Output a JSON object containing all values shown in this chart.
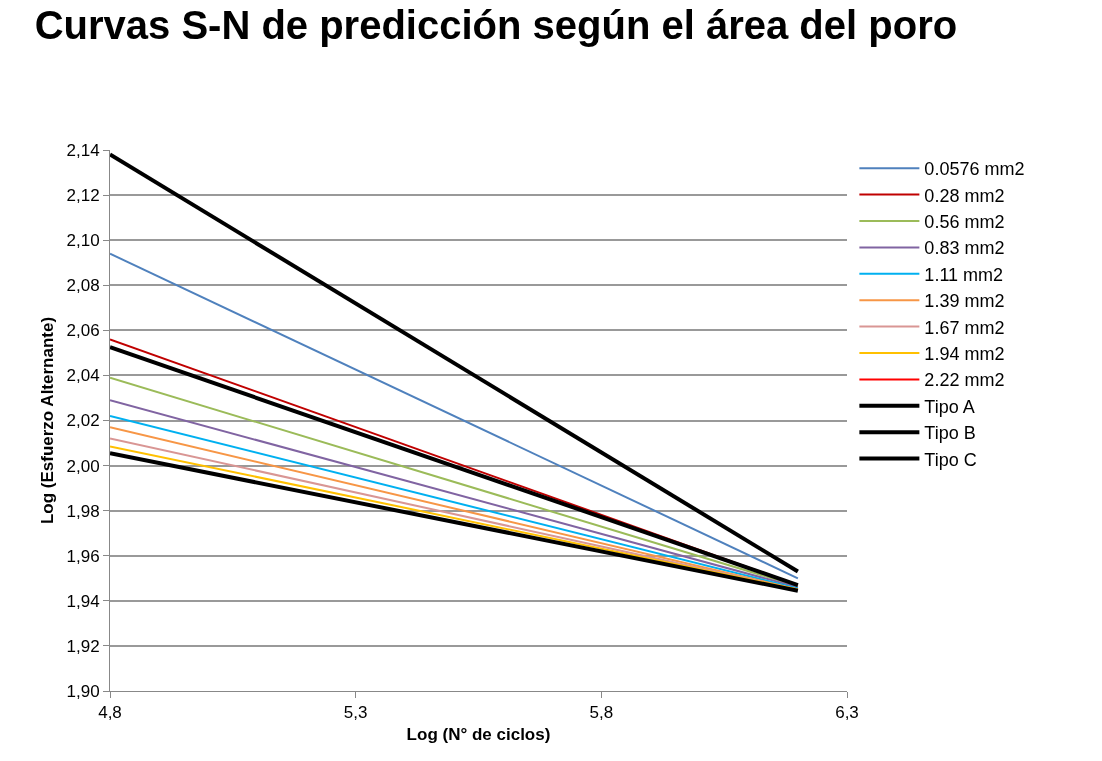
{
  "chart_data": {
    "type": "line",
    "title": "Curvas S-N de predicción según el área del poro",
    "xlabel": "Log (N° de ciclos)",
    "ylabel": "Log (Esfuerzo Alternante)",
    "x": [
      4.8,
      6.2
    ],
    "series": [
      {
        "name": "0.0576 mm2",
        "color": "#4f81bd",
        "values": [
          2.094,
          1.95
        ]
      },
      {
        "name": "0.28 mm2",
        "color": "#c00000",
        "values": [
          2.056,
          1.947
        ]
      },
      {
        "name": "0.56 mm2",
        "color": "#9bbb59",
        "values": [
          2.039,
          1.9465
        ]
      },
      {
        "name": "0.83 mm2",
        "color": "#8064a2",
        "values": [
          2.029,
          1.946
        ]
      },
      {
        "name": "1.11 mm2",
        "color": "#00b0f0",
        "values": [
          2.022,
          1.9455
        ]
      },
      {
        "name": "1.39 mm2",
        "color": "#f79646",
        "values": [
          2.017,
          1.945
        ]
      },
      {
        "name": "1.67 mm2",
        "color": "#d99694",
        "values": [
          2.012,
          1.945
        ]
      },
      {
        "name": "1.94 mm2",
        "color": "#ffc000",
        "values": [
          2.0085,
          1.945
        ]
      },
      {
        "name": "2.22 mm2",
        "color": "#ff0000",
        "values": [
          null,
          null
        ]
      },
      {
        "name": "Tipo A",
        "color": "#000000",
        "values": [
          2.138,
          1.953
        ]
      },
      {
        "name": "Tipo B",
        "color": "#000000",
        "values": [
          2.0525,
          1.947
        ]
      },
      {
        "name": "Tipo C",
        "color": "#000000",
        "values": [
          2.0055,
          1.9445
        ]
      }
    ],
    "xlim": [
      4.8,
      6.3
    ],
    "xticks": [
      {
        "value": 4.8,
        "label": "4,8"
      },
      {
        "value": 5.3,
        "label": "5,3"
      },
      {
        "value": 5.8,
        "label": "5,8"
      },
      {
        "value": 6.3,
        "label": "6,3"
      }
    ],
    "ylim": [
      1.9,
      2.14
    ],
    "yticks": [
      {
        "value": 1.9,
        "label": "1,90"
      },
      {
        "value": 1.92,
        "label": "1,92"
      },
      {
        "value": 1.94,
        "label": "1,94"
      },
      {
        "value": 1.96,
        "label": "1,96"
      },
      {
        "value": 1.98,
        "label": "1,98"
      },
      {
        "value": 2.0,
        "label": "2,00"
      },
      {
        "value": 2.02,
        "label": "2,02"
      },
      {
        "value": 2.04,
        "label": "2,04"
      },
      {
        "value": 2.06,
        "label": "2,06"
      },
      {
        "value": 2.08,
        "label": "2,08"
      },
      {
        "value": 2.1,
        "label": "2,10"
      },
      {
        "value": 2.12,
        "label": "2,12"
      },
      {
        "value": 2.14,
        "label": "2,14"
      }
    ],
    "grid": "y",
    "legend": "right",
    "marker": "none",
    "line_style": "solid"
  }
}
